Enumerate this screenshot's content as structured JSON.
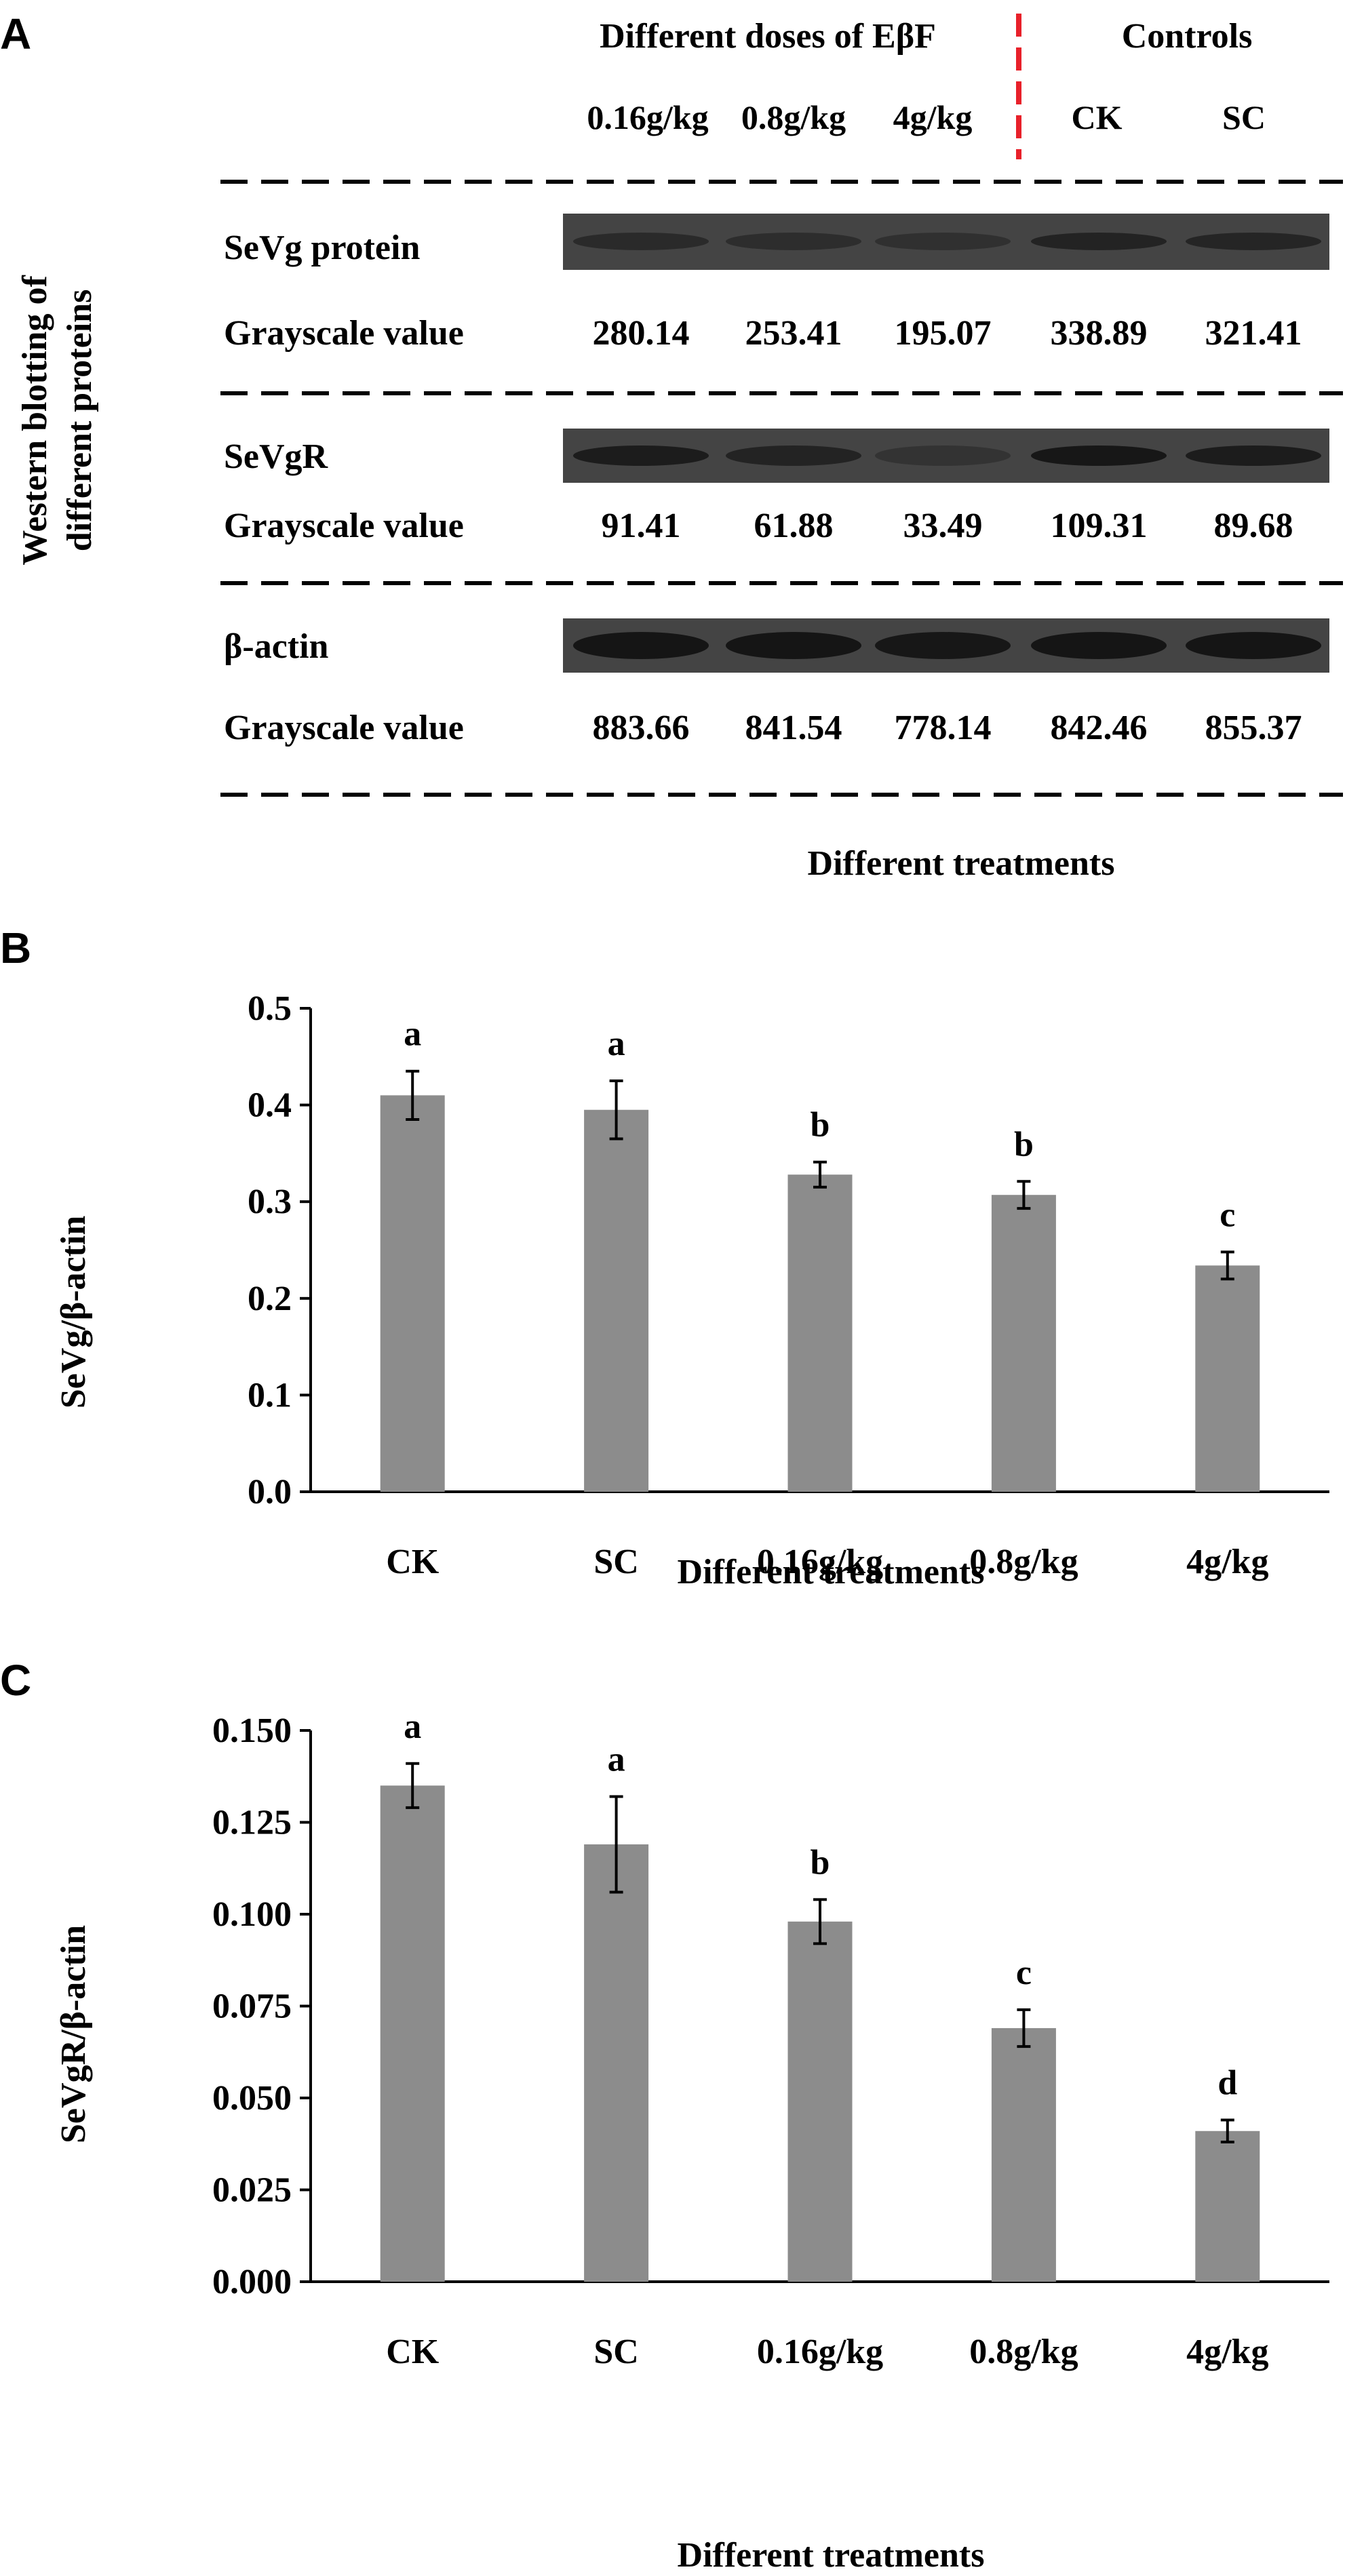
{
  "panels": {
    "a": "A",
    "b": "B",
    "c": "C"
  },
  "blot": {
    "group_header": "Different doses of EβF",
    "controls_header": "Controls",
    "lanes": [
      "0.16g/kg",
      "0.8g/kg",
      "4g/kg",
      "CK",
      "SC"
    ],
    "side_label_line1": "Western blotting of",
    "side_label_line2": "different proteins",
    "proteins": [
      {
        "name": "SeVg protein",
        "value_label": "Grayscale value",
        "values": [
          "280.14",
          "253.41",
          "195.07",
          "338.89",
          "321.41"
        ]
      },
      {
        "name": "SeVgR",
        "value_label": "Grayscale value",
        "values": [
          "91.41",
          "61.88",
          "33.49",
          "109.31",
          "89.68"
        ]
      },
      {
        "name": "β-actin",
        "value_label": "Grayscale value",
        "values": [
          "883.66",
          "841.54",
          "778.14",
          "842.46",
          "855.37"
        ]
      }
    ],
    "xlabel": "Different treatments",
    "colors": {
      "band_bg": "#444444",
      "band": "#151515",
      "divider": "#e8202a"
    }
  },
  "chart_data": [
    {
      "type": "bar",
      "title": "",
      "categories": [
        "CK",
        "SC",
        "0.16g/kg",
        "0.8g/kg",
        "4g/kg"
      ],
      "values": [
        0.41,
        0.395,
        0.328,
        0.307,
        0.234
      ],
      "errors": [
        0.025,
        0.03,
        0.013,
        0.014,
        0.014
      ],
      "letters": [
        "a",
        "a",
        "b",
        "b",
        "c"
      ],
      "ylim": [
        0,
        0.5
      ],
      "yticks": [
        "0.0",
        "0.1",
        "0.2",
        "0.3",
        "0.4",
        "0.5"
      ],
      "xlabel": "Different treatments",
      "ylabel": "SeVg/β-actin",
      "bar_color": "#8c8c8c"
    },
    {
      "type": "bar",
      "title": "",
      "categories": [
        "CK",
        "SC",
        "0.16g/kg",
        "0.8g/kg",
        "4g/kg"
      ],
      "values": [
        0.135,
        0.119,
        0.098,
        0.069,
        0.041
      ],
      "errors": [
        0.006,
        0.013,
        0.006,
        0.005,
        0.003
      ],
      "letters": [
        "a",
        "a",
        "b",
        "c",
        "d"
      ],
      "ylim": [
        0,
        0.15
      ],
      "yticks": [
        "0.000",
        "0.025",
        "0.050",
        "0.075",
        "0.100",
        "0.125",
        "0.150"
      ],
      "xlabel": "Different treatments",
      "ylabel": "SeVgR/β-actin",
      "bar_color": "#8c8c8c"
    }
  ]
}
